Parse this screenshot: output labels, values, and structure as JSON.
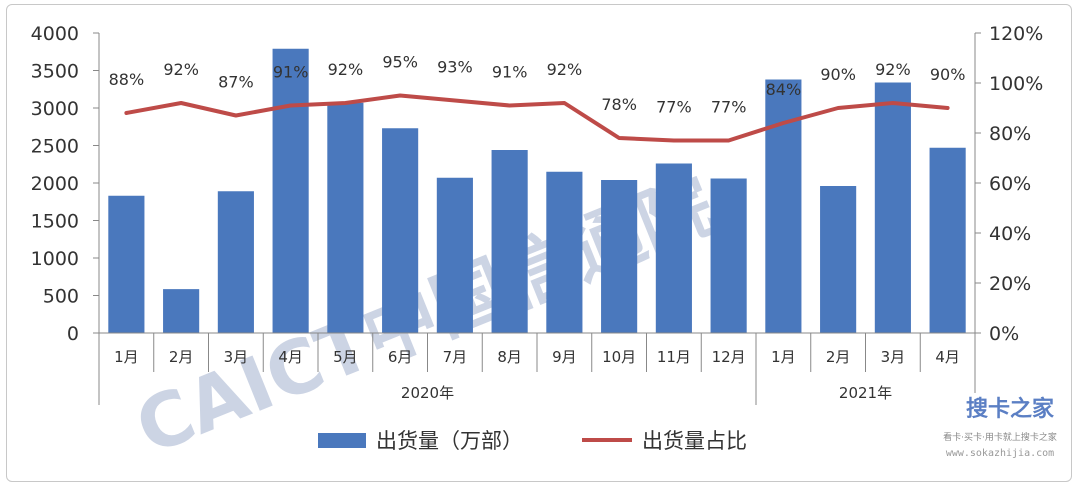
{
  "chart_data": {
    "type": "bar",
    "categories": [
      "1月",
      "2月",
      "3月",
      "4月",
      "5月",
      "6月",
      "7月",
      "8月",
      "9月",
      "10月",
      "11月",
      "12月",
      "1月",
      "2月",
      "3月",
      "4月"
    ],
    "groups": [
      {
        "label": "2020年",
        "count": 12
      },
      {
        "label": "2021年",
        "count": 4
      }
    ],
    "series": [
      {
        "name": "出货量（万部）",
        "type": "bar",
        "axis": "left",
        "color": "#4a78bd",
        "values": [
          1830,
          585,
          1890,
          3790,
          3070,
          2730,
          2070,
          2440,
          2150,
          2040,
          2260,
          2060,
          3380,
          1960,
          3340,
          2470
        ]
      },
      {
        "name": "出货量占比",
        "type": "line",
        "axis": "right",
        "color": "#be4b48",
        "values": [
          88,
          92,
          87,
          91,
          92,
          95,
          93,
          91,
          92,
          78,
          77,
          77,
          84,
          90,
          92,
          90
        ],
        "labels": [
          "88%",
          "92%",
          "87%",
          "91%",
          "92%",
          "95%",
          "93%",
          "91%",
          "92%",
          "78%",
          "77%",
          "77%",
          "84%",
          "90%",
          "92%",
          "90%"
        ]
      }
    ],
    "ylim": [
      0,
      4000
    ],
    "yticks": [
      "0",
      "500",
      "1000",
      "1500",
      "2000",
      "2500",
      "3000",
      "3500",
      "4000"
    ],
    "y2lim": [
      0,
      120
    ],
    "y2ticks": [
      "0%",
      "20%",
      "40%",
      "60%",
      "80%",
      "100%",
      "120%"
    ],
    "legend_position": "bottom",
    "grid": false
  },
  "watermark": {
    "text": "CAICT中国信通院"
  },
  "site_badge": {
    "logo": "搜卡之家",
    "tagline": "看卡·买卡·用卡就上搜卡之家",
    "url": "www.sokazhijia.com"
  }
}
